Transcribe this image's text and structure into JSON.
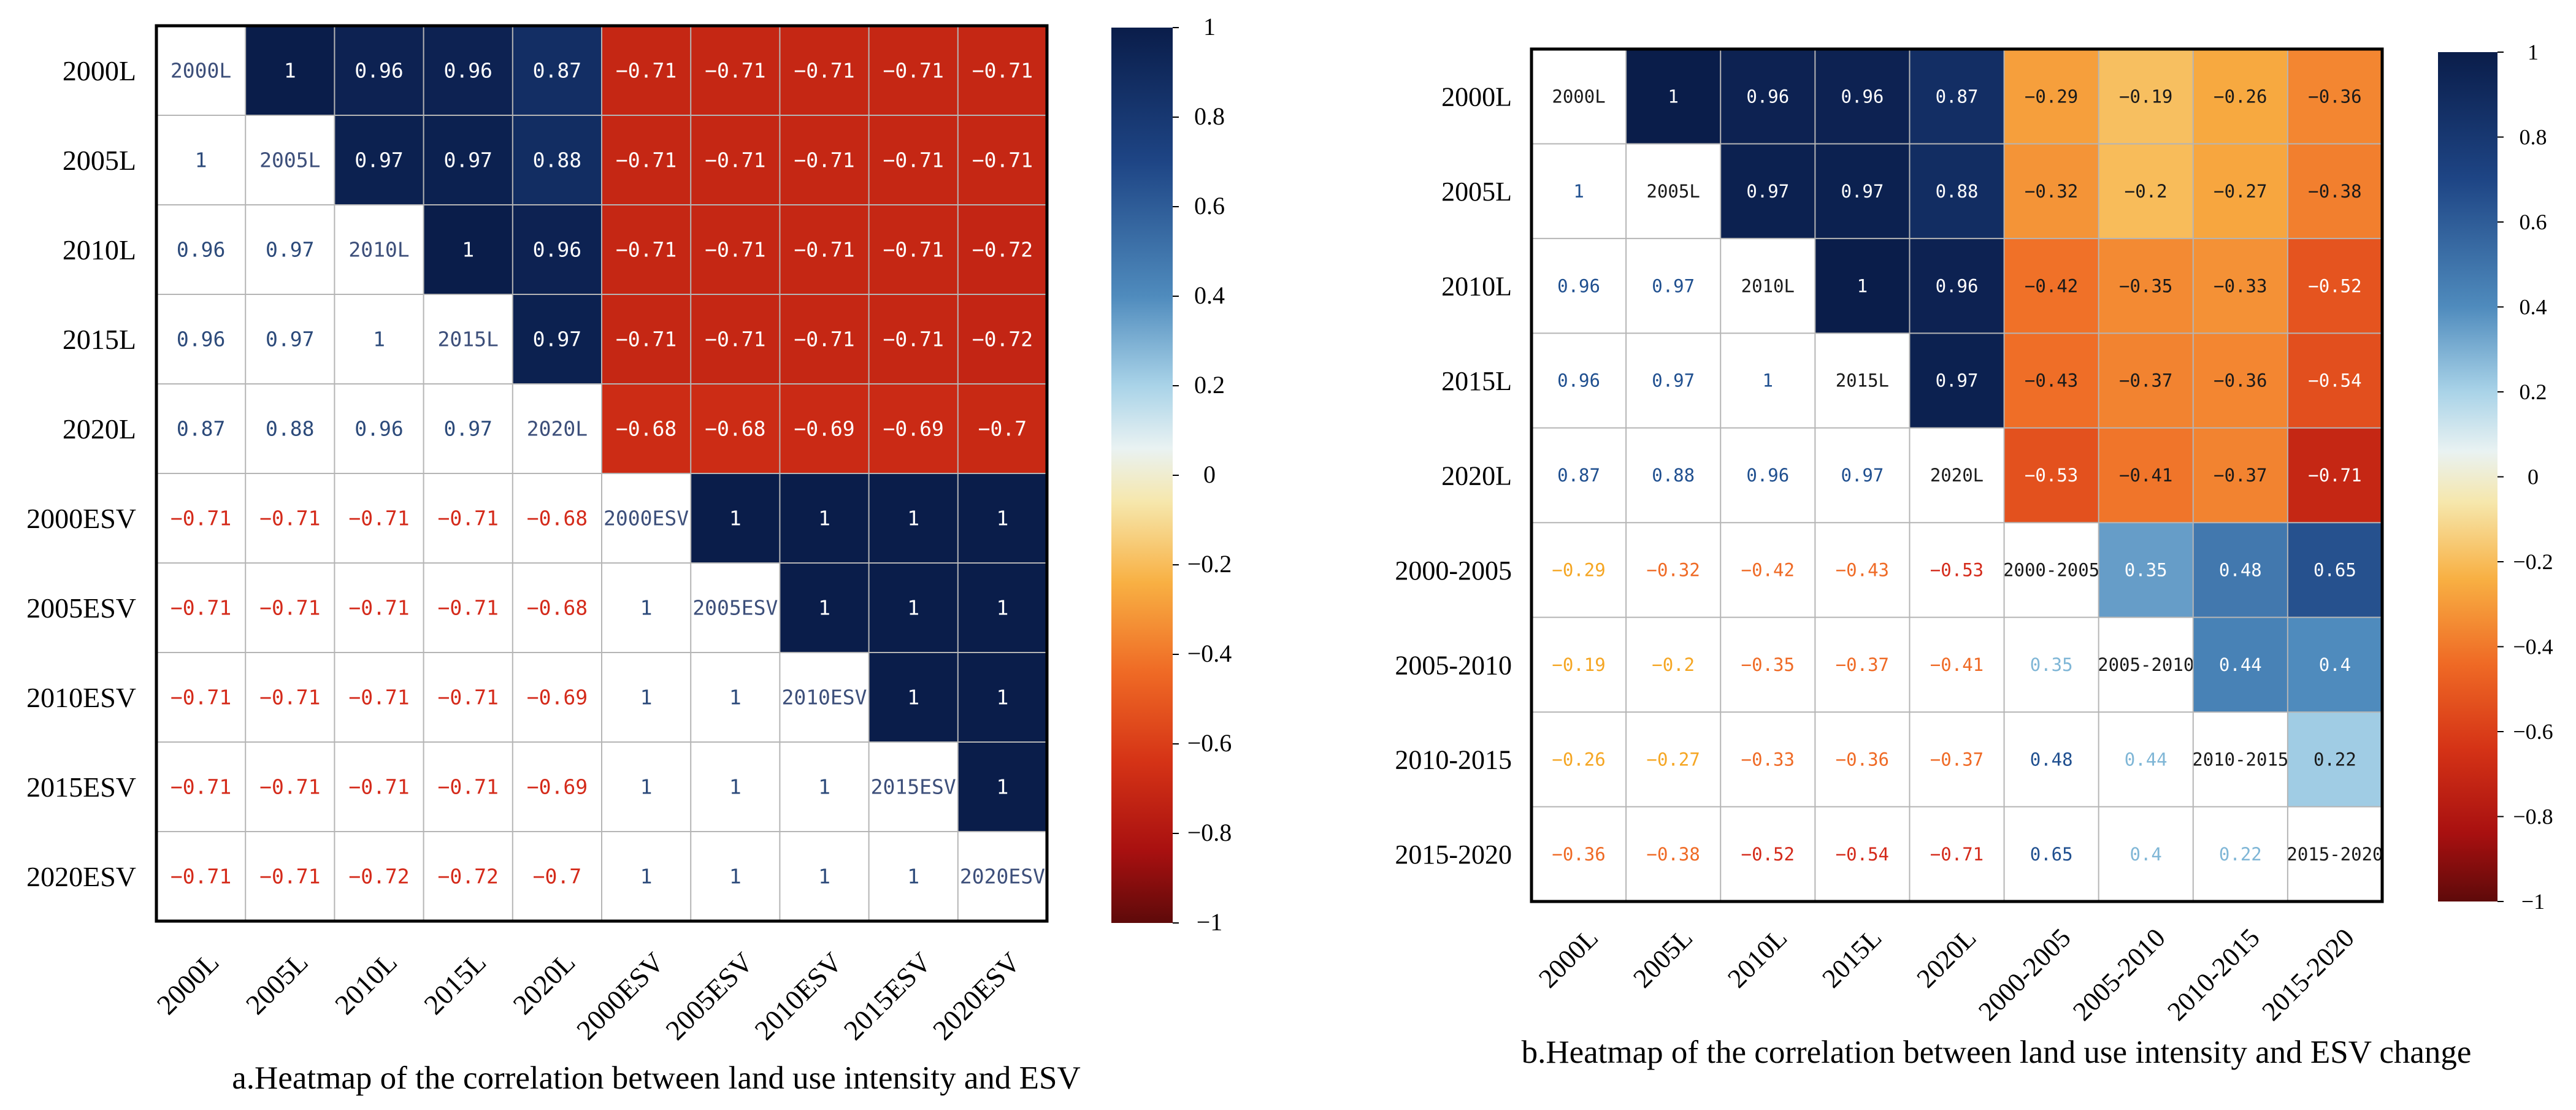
{
  "chart_data": [
    {
      "type": "heatmap",
      "caption": "a.Heatmap of the correlation between land use intensity and ESV",
      "row_labels": [
        "2000L",
        "2005L",
        "2010L",
        "2015L",
        "2020L",
        "2000ESV",
        "2005ESV",
        "2010ESV",
        "2015ESV",
        "2020ESV"
      ],
      "col_labels": [
        "2000L",
        "2005L",
        "2010L",
        "2015L",
        "2020L",
        "2000ESV",
        "2005ESV",
        "2010ESV",
        "2015ESV",
        "2020ESV"
      ],
      "values": [
        [
          null,
          1,
          0.96,
          0.96,
          0.87,
          -0.71,
          -0.71,
          -0.71,
          -0.71,
          -0.71
        ],
        [
          1,
          null,
          0.97,
          0.97,
          0.88,
          -0.71,
          -0.71,
          -0.71,
          -0.71,
          -0.71
        ],
        [
          0.96,
          0.97,
          null,
          1,
          0.96,
          -0.71,
          -0.71,
          -0.71,
          -0.71,
          -0.72
        ],
        [
          0.96,
          0.97,
          1,
          null,
          0.97,
          -0.71,
          -0.71,
          -0.71,
          -0.71,
          -0.72
        ],
        [
          0.87,
          0.88,
          0.96,
          0.97,
          null,
          -0.68,
          -0.68,
          -0.69,
          -0.69,
          -0.7
        ],
        [
          -0.71,
          -0.71,
          -0.71,
          -0.71,
          -0.68,
          null,
          1,
          1,
          1,
          1
        ],
        [
          -0.71,
          -0.71,
          -0.71,
          -0.71,
          -0.68,
          1,
          null,
          1,
          1,
          1
        ],
        [
          -0.71,
          -0.71,
          -0.71,
          -0.71,
          -0.69,
          1,
          1,
          null,
          1,
          1
        ],
        [
          -0.71,
          -0.71,
          -0.71,
          -0.71,
          -0.69,
          1,
          1,
          1,
          null,
          1
        ],
        [
          -0.71,
          -0.71,
          -0.72,
          -0.72,
          -0.7,
          1,
          1,
          1,
          1,
          null
        ]
      ],
      "colorbar": {
        "min": -1,
        "max": 1,
        "ticks": [
          "1",
          "0.8",
          "0.6",
          "0.4",
          "0.2",
          "0",
          "-0.2",
          "-0.4",
          "-0.6",
          "-0.8",
          "-1"
        ]
      },
      "upper_triangle_filled": true,
      "lower_triangle_filled": false
    },
    {
      "type": "heatmap",
      "caption": "b.Heatmap of the correlation between land use intensity and ESV change",
      "row_labels": [
        "2000L",
        "2005L",
        "2010L",
        "2015L",
        "2020L",
        "2000-2005",
        "2005-2010",
        "2010-2015",
        "2015-2020"
      ],
      "col_labels": [
        "2000L",
        "2005L",
        "2010L",
        "2015L",
        "2020L",
        "2000-2005",
        "2005-2010",
        "2010-2015",
        "2015-2020"
      ],
      "values": [
        [
          null,
          1,
          0.96,
          0.96,
          0.87,
          -0.29,
          -0.19,
          -0.26,
          -0.36
        ],
        [
          1,
          null,
          0.97,
          0.97,
          0.88,
          -0.32,
          -0.2,
          -0.27,
          -0.38
        ],
        [
          0.96,
          0.97,
          null,
          1,
          0.96,
          -0.42,
          -0.35,
          -0.33,
          -0.52
        ],
        [
          0.96,
          0.97,
          1,
          null,
          0.97,
          -0.43,
          -0.37,
          -0.36,
          -0.54
        ],
        [
          0.87,
          0.88,
          0.96,
          0.97,
          null,
          -0.53,
          -0.41,
          -0.37,
          -0.71
        ],
        [
          -0.29,
          -0.32,
          -0.42,
          -0.43,
          -0.53,
          null,
          0.35,
          0.48,
          0.65
        ],
        [
          -0.19,
          -0.2,
          -0.35,
          -0.37,
          -0.41,
          0.35,
          null,
          0.44,
          0.4
        ],
        [
          -0.26,
          -0.27,
          -0.33,
          -0.36,
          -0.37,
          0.48,
          0.44,
          null,
          0.22
        ],
        [
          -0.36,
          -0.38,
          -0.52,
          -0.54,
          -0.71,
          0.65,
          0.4,
          0.22,
          null
        ]
      ],
      "colorbar": {
        "min": -1,
        "max": 1,
        "ticks": [
          "1",
          "0.8",
          "0.6",
          "0.4",
          "0.2",
          "0",
          "-0.2",
          "-0.4",
          "-0.6",
          "-0.8",
          "-1"
        ]
      },
      "upper_triangle_filled": true,
      "lower_triangle_filled": false
    }
  ]
}
